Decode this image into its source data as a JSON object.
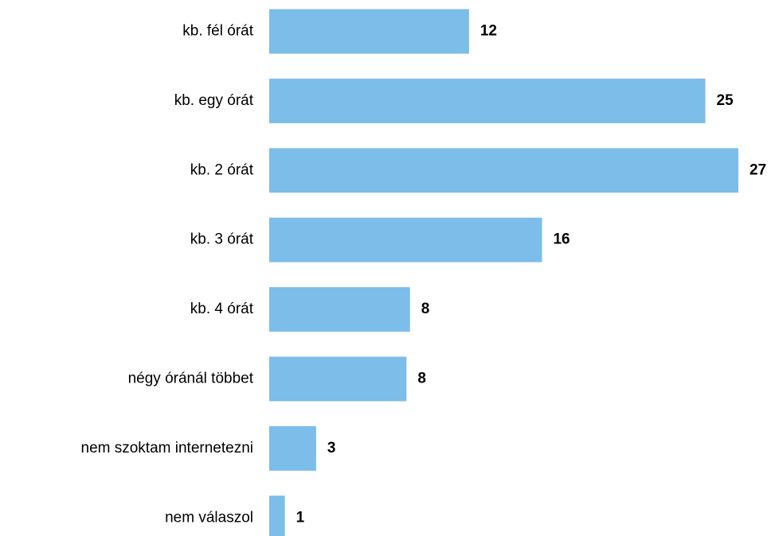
{
  "chart_data": {
    "type": "barh",
    "categories": [
      "kb. fél órát",
      "kb. egy órát",
      "kb. 2 órát",
      "kb. 3 órát",
      "kb. 4 órát",
      "négy óránál többet",
      "nem szoktam internetezni",
      "nem válaszol"
    ],
    "values": [
      11.5,
      25.1,
      27,
      15.7,
      8.1,
      7.9,
      2.7,
      0.9
    ],
    "value_labels": [
      "12",
      "25",
      "27",
      "16",
      "8",
      "8",
      "3",
      "1"
    ],
    "color": "#7cbde9"
  }
}
